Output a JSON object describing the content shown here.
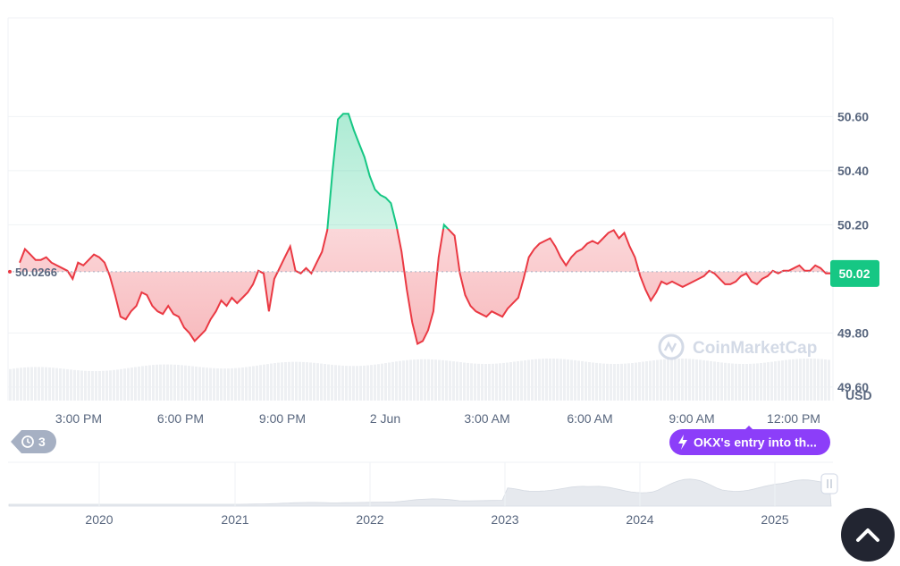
{
  "chart_data": {
    "type": "area",
    "unit": "USD",
    "ylim": [
      49.55,
      50.78
    ],
    "y_ticks": [
      "50.60",
      "50.40",
      "50.20",
      "49.80",
      "49.60"
    ],
    "x_ticks": [
      "3:00 PM",
      "6:00 PM",
      "9:00 PM",
      "2 Jun",
      "3:00 AM",
      "6:00 AM",
      "9:00 AM",
      "12:00 PM"
    ],
    "reference_value": 50.0266,
    "reference_label": "50.0266",
    "current_value": 50.02,
    "current_label": "50.02",
    "series": [
      {
        "values": [
          50.06,
          50.11,
          50.09,
          50.07,
          50.07,
          50.08,
          50.06,
          50.05,
          50.04,
          50.03,
          50.0,
          50.06,
          50.05,
          50.07,
          50.09,
          50.08,
          50.06,
          50.01,
          49.94,
          49.86,
          49.85,
          49.88,
          49.9,
          49.95,
          49.94,
          49.9,
          49.88,
          49.87,
          49.9,
          49.87,
          49.86,
          49.82,
          49.8,
          49.77,
          49.79,
          49.81,
          49.85,
          49.88,
          49.92,
          49.9,
          49.93,
          49.91,
          49.93,
          49.95,
          49.98,
          50.03,
          50.02,
          49.88,
          50.0,
          50.04,
          50.08,
          50.12,
          50.03,
          50.02,
          50.04,
          50.02,
          50.06,
          50.1,
          50.18,
          50.4,
          50.59,
          50.61,
          50.61,
          50.55,
          50.5,
          50.45,
          50.38,
          50.33,
          50.31,
          50.3,
          50.28,
          50.2,
          50.1,
          49.96,
          49.84,
          49.76,
          49.77,
          49.81,
          49.88,
          50.08,
          50.2,
          50.18,
          50.16,
          50.02,
          49.94,
          49.9,
          49.88,
          49.87,
          49.86,
          49.88,
          49.87,
          49.86,
          49.89,
          49.91,
          49.93,
          50.0,
          50.08,
          50.11,
          50.13,
          50.14,
          50.15,
          50.12,
          50.08,
          50.05,
          50.08,
          50.1,
          50.11,
          50.13,
          50.14,
          50.13,
          50.15,
          50.17,
          50.18,
          50.15,
          50.17,
          50.12,
          50.08,
          50.01,
          49.96,
          49.92,
          49.95,
          49.99,
          49.98,
          49.99,
          49.98,
          49.97,
          49.98,
          49.99,
          50.0,
          50.01,
          50.03,
          50.02,
          50.0,
          49.98,
          49.98,
          49.99,
          50.01,
          50.02,
          49.99,
          49.98,
          50.0,
          50.01,
          50.03,
          50.02,
          50.03,
          50.03,
          50.04,
          50.05,
          50.03,
          50.03,
          50.05,
          50.04,
          50.02,
          50.02
        ]
      }
    ],
    "navigator_x_ticks": [
      "2020",
      "2021",
      "2022",
      "2023",
      "2024",
      "2025"
    ]
  },
  "history_badge": {
    "count": "3",
    "icon": "history-icon"
  },
  "annotation": {
    "label": "OKX's entry into th...",
    "icon": "lightning-icon"
  },
  "watermark": {
    "text": "CoinMarketCap"
  },
  "colors": {
    "up": "#16c784",
    "down": "#ea3943",
    "annotation": "#8c3ef9",
    "badge": "#a6b0c3",
    "grid": "#eff2f5",
    "axis_text": "#58667e"
  },
  "scroll_button": {
    "icon": "chevron-up-icon"
  }
}
